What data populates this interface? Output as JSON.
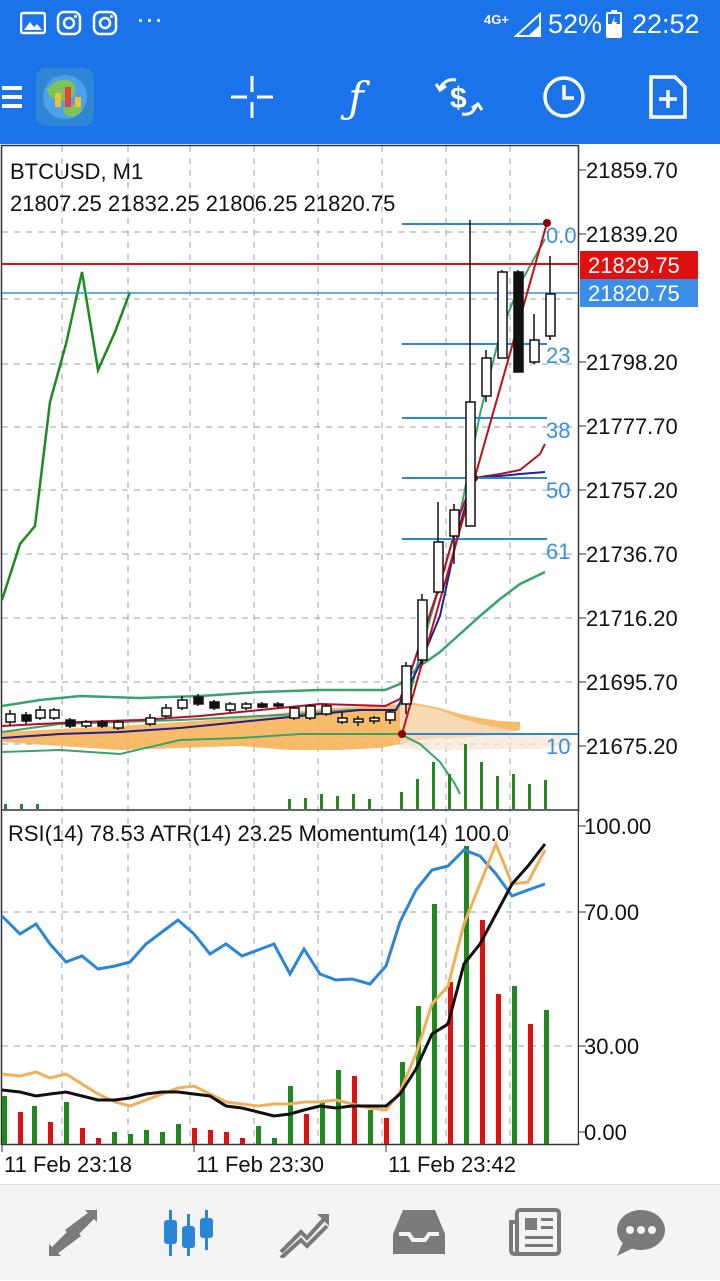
{
  "status_bar": {
    "dots": "···",
    "network": "4G+",
    "battery": "52%",
    "time": "22:52"
  },
  "toolbar": {
    "items": [
      "menu-icon",
      "app-logo",
      "crosshair-icon",
      "indicators-icon",
      "objects-icon",
      "timeframe-icon",
      "new-order-icon"
    ]
  },
  "chart": {
    "symbol": "BTCUSD, M1",
    "ohlc": "21807.25 21832.25 21806.25 21820.75",
    "price_labels": [
      "21859.70",
      "21839.20",
      "21798.20",
      "21777.70",
      "21757.20",
      "21736.70",
      "21716.20",
      "21695.70",
      "21675.20"
    ],
    "ask_label": "21829.75",
    "bid_label": "21820.75",
    "fib_labels": [
      "0.0",
      "23",
      "38",
      "50",
      "61",
      "10"
    ],
    "colors": {
      "ask": "#e01010",
      "bid": "#3b8ee6",
      "fib": "#2a86d6",
      "ichimoku_cloud": "#f6b45a",
      "bollinger": "#3aa36b",
      "sar_green": "#1e8a1e"
    }
  },
  "subchart": {
    "indicator_text": "RSI(14) 78.53 ATR(14) 23.25 Momentum(14) 100.0",
    "levels": [
      "100.00",
      "70.00",
      "30.00",
      "0.00"
    ]
  },
  "time_axis": [
    "11 Feb 23:18",
    "11 Feb 23:30",
    "11 Feb 23:42"
  ],
  "bottom_nav": {
    "items": [
      "quotes-icon",
      "chart-icon",
      "trade-icon",
      "history-icon",
      "news-icon",
      "messages-icon"
    ],
    "active": "chart-icon"
  }
}
